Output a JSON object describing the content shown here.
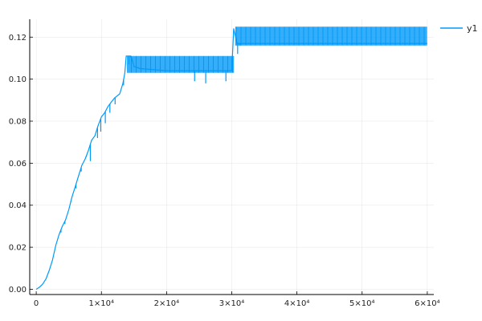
{
  "chart_data": {
    "type": "line",
    "grid": true,
    "legend_position": "top-right",
    "xlim": [
      -1000,
      61000
    ],
    "ylim": [
      -0.0025,
      0.1285
    ],
    "xticks": [
      {
        "value": 0,
        "label": "0"
      },
      {
        "value": 10000,
        "label": "1×10⁴"
      },
      {
        "value": 20000,
        "label": "2×10⁴"
      },
      {
        "value": 30000,
        "label": "3×10⁴"
      },
      {
        "value": 40000,
        "label": "4×10⁴"
      },
      {
        "value": 50000,
        "label": "5×10⁴"
      },
      {
        "value": 60000,
        "label": "6×10⁴"
      }
    ],
    "yticks": [
      {
        "value": 0.0,
        "label": "0.00"
      },
      {
        "value": 0.02,
        "label": "0.02"
      },
      {
        "value": 0.04,
        "label": "0.04"
      },
      {
        "value": 0.06,
        "label": "0.06"
      },
      {
        "value": 0.08,
        "label": "0.08"
      },
      {
        "value": 0.1,
        "label": "0.10"
      },
      {
        "value": 0.12,
        "label": "0.12"
      }
    ],
    "series": [
      {
        "name": "y1",
        "color": "#009AFA",
        "line": [
          [
            0,
            0.0
          ],
          [
            500,
            0.001
          ],
          [
            1000,
            0.0025
          ],
          [
            1500,
            0.005
          ],
          [
            2000,
            0.009
          ],
          [
            2500,
            0.014
          ],
          [
            3000,
            0.021
          ],
          [
            3500,
            0.026
          ],
          [
            4000,
            0.03
          ],
          [
            4500,
            0.033
          ],
          [
            5000,
            0.038
          ],
          [
            5500,
            0.044
          ],
          [
            6000,
            0.049
          ],
          [
            6500,
            0.054
          ],
          [
            7000,
            0.059
          ],
          [
            7500,
            0.062
          ],
          [
            8000,
            0.066
          ],
          [
            8500,
            0.071
          ],
          [
            9000,
            0.073
          ],
          [
            9500,
            0.078
          ],
          [
            10000,
            0.082
          ],
          [
            10500,
            0.084
          ],
          [
            11000,
            0.087
          ],
          [
            11500,
            0.089
          ],
          [
            12000,
            0.091
          ],
          [
            12800,
            0.093
          ],
          [
            13300,
            0.098
          ],
          [
            13600,
            0.103
          ],
          [
            13800,
            0.111
          ],
          [
            14500,
            0.111
          ],
          [
            15000,
            0.106
          ],
          [
            16000,
            0.105
          ],
          [
            20000,
            0.104
          ],
          [
            25000,
            0.104
          ],
          [
            30000,
            0.104
          ],
          [
            30300,
            0.124
          ],
          [
            30800,
            0.117
          ],
          [
            60000,
            0.117
          ]
        ],
        "bands": [
          {
            "x": [
              14000,
              30300
            ],
            "y": [
              0.103,
              0.111
            ]
          },
          {
            "x": [
              30600,
              60000
            ],
            "y": [
              0.116,
              0.125
            ]
          }
        ],
        "spikes": [
          [
            3800,
            0.027
          ],
          [
            4400,
            0.031
          ],
          [
            5300,
            0.042
          ],
          [
            6100,
            0.048
          ],
          [
            6900,
            0.056
          ],
          [
            7700,
            0.063
          ],
          [
            8300,
            0.061
          ],
          [
            9400,
            0.072
          ],
          [
            9900,
            0.075
          ],
          [
            10600,
            0.079
          ],
          [
            11300,
            0.084
          ],
          [
            12100,
            0.088
          ],
          [
            13400,
            0.097
          ],
          [
            14200,
            0.107
          ],
          [
            24300,
            0.099
          ],
          [
            26000,
            0.098
          ],
          [
            29100,
            0.099
          ],
          [
            30900,
            0.112
          ],
          [
            31300,
            0.116
          ]
        ]
      }
    ]
  }
}
